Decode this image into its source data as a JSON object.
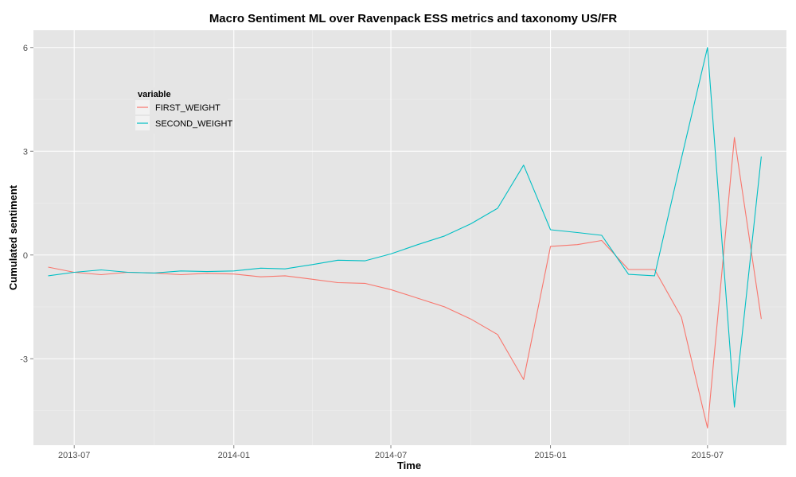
{
  "chart_data": {
    "type": "line",
    "title": "Macro Sentiment ML over Ravenpack ESS metrics and taxonomy US/FR",
    "xlabel": "Time",
    "ylabel": "Cumulated sentiment",
    "x_ticks": [
      "2013-07",
      "2014-01",
      "2014-07",
      "2015-01",
      "2015-07"
    ],
    "y_ticks": [
      -3,
      0,
      3,
      6
    ],
    "xlim": [
      "2013-05-15",
      "2015-09-30"
    ],
    "ylim": [
      -5.5,
      6.5
    ],
    "grid": true,
    "legend": {
      "title": "variable",
      "position": "top-left"
    },
    "x": [
      "2013-06-01",
      "2013-07-01",
      "2013-08-01",
      "2013-09-01",
      "2013-10-01",
      "2013-11-01",
      "2013-12-01",
      "2014-01-01",
      "2014-02-01",
      "2014-03-01",
      "2014-04-01",
      "2014-05-01",
      "2014-06-01",
      "2014-07-01",
      "2014-08-01",
      "2014-09-01",
      "2014-10-01",
      "2014-11-01",
      "2014-12-01",
      "2015-01-01",
      "2015-02-01",
      "2015-03-01",
      "2015-04-01",
      "2015-05-01",
      "2015-06-01",
      "2015-07-01",
      "2015-08-01",
      "2015-09-01"
    ],
    "series": [
      {
        "name": "FIRST_WEIGHT",
        "color": "#F8766D",
        "values": [
          -0.35,
          -0.5,
          -0.57,
          -0.5,
          -0.52,
          -0.57,
          -0.53,
          -0.55,
          -0.63,
          -0.6,
          -0.7,
          -0.8,
          -0.82,
          -1.0,
          -1.25,
          -1.5,
          -1.85,
          -2.3,
          -3.6,
          0.25,
          0.3,
          0.42,
          -0.42,
          -0.42,
          -1.8,
          -5.0,
          3.4,
          -1.85
        ]
      },
      {
        "name": "SECOND_WEIGHT",
        "color": "#00BFC4",
        "values": [
          -0.6,
          -0.5,
          -0.43,
          -0.5,
          -0.52,
          -0.46,
          -0.48,
          -0.46,
          -0.38,
          -0.4,
          -0.28,
          -0.15,
          -0.17,
          0.03,
          0.3,
          0.55,
          0.9,
          1.35,
          2.6,
          0.73,
          0.65,
          0.57,
          -0.56,
          -0.6,
          2.8,
          6.0,
          -4.4,
          2.85
        ]
      }
    ]
  }
}
